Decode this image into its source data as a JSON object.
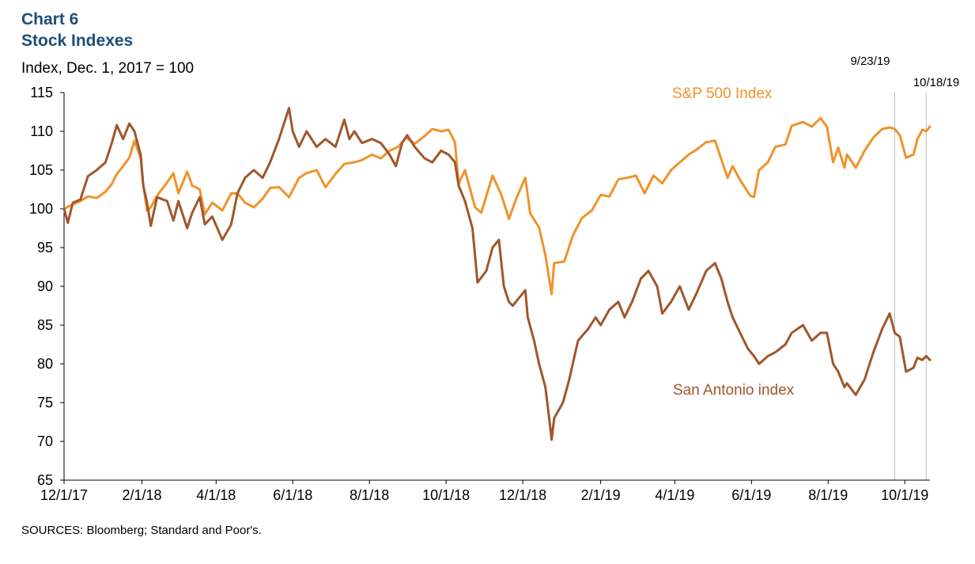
{
  "header": {
    "chart_number": "Chart 6",
    "title": "Stock Indexes",
    "ylabel": "Index, Dec. 1, 2017 = 100"
  },
  "footer": {
    "source": "SOURCES: Bloomberg; Standard and Poor's."
  },
  "chart_data": {
    "type": "line",
    "title": "Stock Indexes",
    "ylabel": "Index, Dec. 1, 2017 = 100",
    "xlabel": "",
    "ylim": [
      65,
      115
    ],
    "y_ticks": [
      65,
      70,
      75,
      80,
      85,
      90,
      95,
      100,
      105,
      110,
      115
    ],
    "xlim": [
      "2017-12-01",
      "2019-10-21"
    ],
    "x_ticks": [
      {
        "date": "2017-12-01",
        "label": "12/1/17"
      },
      {
        "date": "2018-02-01",
        "label": "2/1/18"
      },
      {
        "date": "2018-04-01",
        "label": "4/1/18"
      },
      {
        "date": "2018-06-01",
        "label": "6/1/18"
      },
      {
        "date": "2018-08-01",
        "label": "8/1/18"
      },
      {
        "date": "2018-10-01",
        "label": "10/1/18"
      },
      {
        "date": "2018-12-01",
        "label": "12/1/18"
      },
      {
        "date": "2019-02-01",
        "label": "2/1/19"
      },
      {
        "date": "2019-04-01",
        "label": "4/1/19"
      },
      {
        "date": "2019-06-01",
        "label": "6/1/19"
      },
      {
        "date": "2019-08-01",
        "label": "8/1/19"
      },
      {
        "date": "2019-10-01",
        "label": "10/1/19"
      }
    ],
    "grid": false,
    "reference_lines": [
      {
        "date": "2019-09-23",
        "label": "9/23/19"
      },
      {
        "date": "2019-10-18",
        "label": "10/18/19"
      }
    ],
    "series": [
      {
        "name": "S&P 500 Index",
        "color": "#f0922b",
        "points": [
          [
            "2017-12-01",
            100.0
          ],
          [
            "2017-12-07",
            100.5
          ],
          [
            "2017-12-14",
            101.0
          ],
          [
            "2017-12-20",
            101.6
          ],
          [
            "2017-12-27",
            101.4
          ],
          [
            "2018-01-03",
            102.2
          ],
          [
            "2018-01-08",
            103.2
          ],
          [
            "2018-01-12",
            104.5
          ],
          [
            "2018-01-17",
            105.5
          ],
          [
            "2018-01-22",
            106.6
          ],
          [
            "2018-01-26",
            108.8
          ],
          [
            "2018-01-31",
            106.5
          ],
          [
            "2018-02-02",
            103.2
          ],
          [
            "2018-02-05",
            99.8
          ],
          [
            "2018-02-08",
            100.2
          ],
          [
            "2018-02-13",
            101.7
          ],
          [
            "2018-02-21",
            103.4
          ],
          [
            "2018-02-26",
            104.6
          ],
          [
            "2018-03-02",
            102.0
          ],
          [
            "2018-03-09",
            104.8
          ],
          [
            "2018-03-13",
            103.0
          ],
          [
            "2018-03-19",
            102.5
          ],
          [
            "2018-03-23",
            99.3
          ],
          [
            "2018-03-29",
            100.8
          ],
          [
            "2018-04-06",
            99.8
          ],
          [
            "2018-04-13",
            102.0
          ],
          [
            "2018-04-18",
            102.0
          ],
          [
            "2018-04-24",
            100.8
          ],
          [
            "2018-05-01",
            100.2
          ],
          [
            "2018-05-08",
            101.3
          ],
          [
            "2018-05-14",
            102.7
          ],
          [
            "2018-05-21",
            102.8
          ],
          [
            "2018-05-29",
            101.5
          ],
          [
            "2018-06-06",
            104.0
          ],
          [
            "2018-06-12",
            104.6
          ],
          [
            "2018-06-20",
            105.0
          ],
          [
            "2018-06-27",
            102.8
          ],
          [
            "2018-07-05",
            104.5
          ],
          [
            "2018-07-12",
            105.8
          ],
          [
            "2018-07-20",
            106.0
          ],
          [
            "2018-07-26",
            106.3
          ],
          [
            "2018-08-03",
            107.0
          ],
          [
            "2018-08-10",
            106.5
          ],
          [
            "2018-08-17",
            107.5
          ],
          [
            "2018-08-24",
            108.0
          ],
          [
            "2018-08-30",
            109.2
          ],
          [
            "2018-09-06",
            108.4
          ],
          [
            "2018-09-14",
            109.4
          ],
          [
            "2018-09-20",
            110.3
          ],
          [
            "2018-09-27",
            110.0
          ],
          [
            "2018-10-03",
            110.2
          ],
          [
            "2018-10-08",
            108.6
          ],
          [
            "2018-10-11",
            103.2
          ],
          [
            "2018-10-16",
            105.0
          ],
          [
            "2018-10-24",
            100.2
          ],
          [
            "2018-10-29",
            99.5
          ],
          [
            "2018-11-07",
            104.3
          ],
          [
            "2018-11-14",
            101.8
          ],
          [
            "2018-11-20",
            98.7
          ],
          [
            "2018-11-26",
            101.4
          ],
          [
            "2018-12-03",
            104.0
          ],
          [
            "2018-12-07",
            99.4
          ],
          [
            "2018-12-14",
            97.6
          ],
          [
            "2018-12-19",
            94.0
          ],
          [
            "2018-12-24",
            89.0
          ],
          [
            "2018-12-26",
            93.0
          ],
          [
            "2019-01-03",
            93.2
          ],
          [
            "2019-01-10",
            96.6
          ],
          [
            "2019-01-17",
            98.8
          ],
          [
            "2019-01-25",
            99.8
          ],
          [
            "2019-02-01",
            101.8
          ],
          [
            "2019-02-08",
            101.6
          ],
          [
            "2019-02-15",
            103.8
          ],
          [
            "2019-02-22",
            104.0
          ],
          [
            "2019-03-01",
            104.3
          ],
          [
            "2019-03-08",
            102.0
          ],
          [
            "2019-03-15",
            104.3
          ],
          [
            "2019-03-22",
            103.3
          ],
          [
            "2019-03-29",
            105.0
          ],
          [
            "2019-04-05",
            106.0
          ],
          [
            "2019-04-12",
            107.0
          ],
          [
            "2019-04-18",
            107.6
          ],
          [
            "2019-04-26",
            108.6
          ],
          [
            "2019-05-03",
            108.8
          ],
          [
            "2019-05-13",
            104.0
          ],
          [
            "2019-05-17",
            105.5
          ],
          [
            "2019-05-23",
            103.7
          ],
          [
            "2019-05-31",
            101.7
          ],
          [
            "2019-06-03",
            101.5
          ],
          [
            "2019-06-07",
            105.0
          ],
          [
            "2019-06-14",
            106.0
          ],
          [
            "2019-06-20",
            108.0
          ],
          [
            "2019-06-28",
            108.3
          ],
          [
            "2019-07-03",
            110.7
          ],
          [
            "2019-07-12",
            111.2
          ],
          [
            "2019-07-19",
            110.6
          ],
          [
            "2019-07-26",
            111.7
          ],
          [
            "2019-07-31",
            110.6
          ],
          [
            "2019-08-05",
            106.0
          ],
          [
            "2019-08-09",
            107.9
          ],
          [
            "2019-08-14",
            105.3
          ],
          [
            "2019-08-16",
            107.0
          ],
          [
            "2019-08-23",
            105.3
          ],
          [
            "2019-08-30",
            107.5
          ],
          [
            "2019-09-06",
            109.2
          ],
          [
            "2019-09-13",
            110.3
          ],
          [
            "2019-09-19",
            110.5
          ],
          [
            "2019-09-23",
            110.3
          ],
          [
            "2019-09-27",
            109.5
          ],
          [
            "2019-10-02",
            106.6
          ],
          [
            "2019-10-08",
            107.0
          ],
          [
            "2019-10-11",
            109.0
          ],
          [
            "2019-10-15",
            110.2
          ],
          [
            "2019-10-18",
            110.0
          ],
          [
            "2019-10-21",
            110.6
          ]
        ]
      },
      {
        "name": "San Antonio index",
        "color": "#a0572b",
        "points": [
          [
            "2017-12-01",
            100.0
          ],
          [
            "2017-12-04",
            98.2
          ],
          [
            "2017-12-08",
            100.8
          ],
          [
            "2017-12-14",
            101.2
          ],
          [
            "2017-12-20",
            104.2
          ],
          [
            "2017-12-27",
            105.0
          ],
          [
            "2018-01-03",
            106.0
          ],
          [
            "2018-01-08",
            108.5
          ],
          [
            "2018-01-12",
            110.8
          ],
          [
            "2018-01-17",
            109.0
          ],
          [
            "2018-01-22",
            111.0
          ],
          [
            "2018-01-26",
            110.0
          ],
          [
            "2018-01-31",
            107.0
          ],
          [
            "2018-02-02",
            103.0
          ],
          [
            "2018-02-05",
            100.8
          ],
          [
            "2018-02-08",
            97.8
          ],
          [
            "2018-02-13",
            101.5
          ],
          [
            "2018-02-21",
            101.0
          ],
          [
            "2018-02-26",
            98.5
          ],
          [
            "2018-03-02",
            101.0
          ],
          [
            "2018-03-09",
            97.5
          ],
          [
            "2018-03-13",
            99.5
          ],
          [
            "2018-03-19",
            101.5
          ],
          [
            "2018-03-23",
            98.0
          ],
          [
            "2018-03-29",
            99.0
          ],
          [
            "2018-04-06",
            96.0
          ],
          [
            "2018-04-13",
            98.0
          ],
          [
            "2018-04-18",
            102.0
          ],
          [
            "2018-04-24",
            104.0
          ],
          [
            "2018-05-01",
            105.0
          ],
          [
            "2018-05-08",
            104.0
          ],
          [
            "2018-05-14",
            106.0
          ],
          [
            "2018-05-21",
            109.0
          ],
          [
            "2018-05-25",
            111.0
          ],
          [
            "2018-05-29",
            113.0
          ],
          [
            "2018-06-01",
            110.0
          ],
          [
            "2018-06-06",
            108.0
          ],
          [
            "2018-06-12",
            110.0
          ],
          [
            "2018-06-20",
            108.0
          ],
          [
            "2018-06-27",
            109.0
          ],
          [
            "2018-07-05",
            108.0
          ],
          [
            "2018-07-12",
            111.5
          ],
          [
            "2018-07-16",
            109.0
          ],
          [
            "2018-07-20",
            110.0
          ],
          [
            "2018-07-26",
            108.5
          ],
          [
            "2018-08-03",
            109.0
          ],
          [
            "2018-08-10",
            108.5
          ],
          [
            "2018-08-17",
            107.0
          ],
          [
            "2018-08-22",
            105.5
          ],
          [
            "2018-08-27",
            108.5
          ],
          [
            "2018-08-31",
            109.5
          ],
          [
            "2018-09-06",
            108.0
          ],
          [
            "2018-09-14",
            106.5
          ],
          [
            "2018-09-20",
            106.0
          ],
          [
            "2018-09-27",
            107.5
          ],
          [
            "2018-10-03",
            107.0
          ],
          [
            "2018-10-08",
            106.0
          ],
          [
            "2018-10-11",
            103.0
          ],
          [
            "2018-10-16",
            101.0
          ],
          [
            "2018-10-22",
            97.5
          ],
          [
            "2018-10-26",
            90.5
          ],
          [
            "2018-11-02",
            92.0
          ],
          [
            "2018-11-07",
            95.0
          ],
          [
            "2018-11-12",
            96.0
          ],
          [
            "2018-11-16",
            90.0
          ],
          [
            "2018-11-20",
            88.0
          ],
          [
            "2018-11-23",
            87.5
          ],
          [
            "2018-11-28",
            88.5
          ],
          [
            "2018-12-03",
            89.5
          ],
          [
            "2018-12-05",
            86.0
          ],
          [
            "2018-12-10",
            83.0
          ],
          [
            "2018-12-14",
            80.0
          ],
          [
            "2018-12-19",
            77.0
          ],
          [
            "2018-12-22",
            73.0
          ],
          [
            "2018-12-24",
            70.2
          ],
          [
            "2018-12-26",
            73.0
          ],
          [
            "2019-01-02",
            75.0
          ],
          [
            "2019-01-07",
            78.0
          ],
          [
            "2019-01-14",
            83.0
          ],
          [
            "2019-01-22",
            84.5
          ],
          [
            "2019-01-28",
            86.0
          ],
          [
            "2019-02-01",
            85.0
          ],
          [
            "2019-02-08",
            87.0
          ],
          [
            "2019-02-15",
            88.0
          ],
          [
            "2019-02-20",
            86.0
          ],
          [
            "2019-02-26",
            88.0
          ],
          [
            "2019-03-05",
            91.0
          ],
          [
            "2019-03-11",
            92.0
          ],
          [
            "2019-03-18",
            90.0
          ],
          [
            "2019-03-22",
            86.5
          ],
          [
            "2019-03-29",
            88.0
          ],
          [
            "2019-04-05",
            90.0
          ],
          [
            "2019-04-12",
            87.0
          ],
          [
            "2019-04-18",
            89.0
          ],
          [
            "2019-04-26",
            92.0
          ],
          [
            "2019-05-03",
            93.0
          ],
          [
            "2019-05-08",
            91.0
          ],
          [
            "2019-05-13",
            88.0
          ],
          [
            "2019-05-17",
            86.0
          ],
          [
            "2019-05-23",
            84.0
          ],
          [
            "2019-05-29",
            82.0
          ],
          [
            "2019-06-03",
            81.0
          ],
          [
            "2019-06-07",
            80.0
          ],
          [
            "2019-06-14",
            81.0
          ],
          [
            "2019-06-20",
            81.5
          ],
          [
            "2019-06-28",
            82.5
          ],
          [
            "2019-07-03",
            84.0
          ],
          [
            "2019-07-12",
            85.0
          ],
          [
            "2019-07-19",
            83.0
          ],
          [
            "2019-07-26",
            84.0
          ],
          [
            "2019-07-31",
            84.0
          ],
          [
            "2019-08-05",
            80.0
          ],
          [
            "2019-08-09",
            79.0
          ],
          [
            "2019-08-14",
            77.0
          ],
          [
            "2019-08-16",
            77.5
          ],
          [
            "2019-08-23",
            76.0
          ],
          [
            "2019-08-30",
            78.0
          ],
          [
            "2019-09-06",
            81.5
          ],
          [
            "2019-09-13",
            84.5
          ],
          [
            "2019-09-19",
            86.5
          ],
          [
            "2019-09-23",
            84.0
          ],
          [
            "2019-09-27",
            83.5
          ],
          [
            "2019-10-02",
            79.0
          ],
          [
            "2019-10-08",
            79.5
          ],
          [
            "2019-10-11",
            80.8
          ],
          [
            "2019-10-15",
            80.5
          ],
          [
            "2019-10-18",
            81.0
          ],
          [
            "2019-10-21",
            80.5
          ]
        ]
      }
    ]
  }
}
